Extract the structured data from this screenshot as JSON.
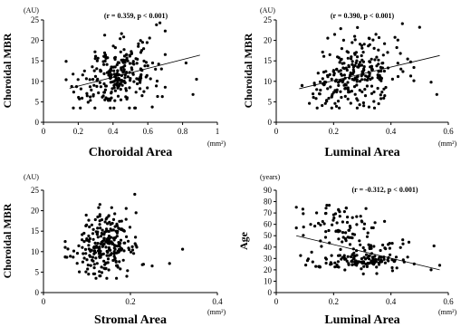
{
  "chart_data": [
    {
      "type": "scatter",
      "id": "choroidal-area",
      "xlabel": "Choroidal Area",
      "ylabel": "Choroidal MBR",
      "yunit": "(AU)",
      "xunit": "(mm²)",
      "stat": "(r = 0.359, p < 0.001)",
      "xlim": [
        0,
        1
      ],
      "ylim": [
        0,
        25
      ],
      "xticks": [
        "0",
        "0.2",
        "0.4",
        "0.6",
        "0.8",
        "1"
      ],
      "yticks": [
        "0",
        "5",
        "10",
        "15",
        "20",
        "25"
      ],
      "regression": {
        "x": [
          0.15,
          0.9
        ],
        "y": [
          8.3,
          16.4
        ]
      },
      "points": {
        "n": 260,
        "x_center": 0.42,
        "x_spread": 0.11,
        "x_min": 0.13,
        "x_max": 0.7,
        "y_center": 11.5,
        "y_spread": 3.8,
        "y_min": 3.5,
        "y_max": 24.5,
        "slope": 10.8,
        "intercept": 6.7,
        "extra": [
          [
            0.86,
            6.8
          ],
          [
            0.88,
            10.5
          ],
          [
            0.82,
            14.5
          ],
          [
            0.65,
            23.8
          ],
          [
            0.67,
            24.3
          ]
        ]
      }
    },
    {
      "type": "scatter",
      "id": "luminal-area-mbr",
      "xlabel": "Luminal Area",
      "ylabel": "Choroidal MBR",
      "yunit": "(AU)",
      "xunit": "(mm²)",
      "stat": "(r = 0.390, p < 0.001)",
      "xlim": [
        0,
        0.6
      ],
      "ylim": [
        0,
        25
      ],
      "xticks": [
        "0",
        "0.2",
        "0.4",
        "0.6"
      ],
      "yticks": [
        "0",
        "5",
        "10",
        "15",
        "20",
        "25"
      ],
      "regression": {
        "x": [
          0.08,
          0.57
        ],
        "y": [
          8.2,
          16.3
        ]
      },
      "points": {
        "n": 260,
        "x_center": 0.27,
        "x_spread": 0.075,
        "x_min": 0.09,
        "x_max": 0.48,
        "y_center": 11.5,
        "y_spread": 3.8,
        "y_min": 3.5,
        "y_max": 24.5,
        "slope": 16.5,
        "intercept": 7.0,
        "extra": [
          [
            0.54,
            9.8
          ],
          [
            0.56,
            6.8
          ],
          [
            0.5,
            23.2
          ],
          [
            0.44,
            24.1
          ]
        ]
      }
    },
    {
      "type": "scatter",
      "id": "stromal-area",
      "xlabel": "Stromal Area",
      "ylabel": "Choroidal MBR",
      "yunit": "(AU)",
      "xunit": "(mm²)",
      "stat": "",
      "xlim": [
        0,
        0.4
      ],
      "ylim": [
        0,
        25
      ],
      "xticks": [
        "0",
        "0.2",
        "0.4"
      ],
      "yticks": [
        "0",
        "5",
        "10",
        "15",
        "20",
        "25"
      ],
      "regression": null,
      "points": {
        "n": 260,
        "x_center": 0.14,
        "x_spread": 0.035,
        "x_min": 0.05,
        "x_max": 0.23,
        "y_center": 11.5,
        "y_spread": 3.8,
        "y_min": 3.5,
        "y_max": 24.5,
        "slope": 10.0,
        "intercept": 10.1,
        "extra": [
          [
            0.32,
            10.6
          ],
          [
            0.29,
            7.1
          ],
          [
            0.25,
            6.5
          ],
          [
            0.21,
            24.0
          ]
        ]
      }
    },
    {
      "type": "scatter",
      "id": "luminal-area-age",
      "xlabel": "Luminal Area",
      "ylabel": "Age",
      "yunit": "(years)",
      "xunit": "(mm²)",
      "stat": "(r = -0.312, p < 0.001)",
      "xlim": [
        0,
        0.6
      ],
      "ylim": [
        0,
        90
      ],
      "xticks": [
        "0",
        "0.2",
        "0.4",
        "0.6"
      ],
      "yticks": [
        "0",
        "10",
        "20",
        "30",
        "40",
        "50",
        "60",
        "70",
        "80",
        "90"
      ],
      "regression": {
        "x": [
          0.07,
          0.57
        ],
        "y": [
          50,
          20
        ]
      },
      "points": {
        "groups": [
          {
            "n": 120,
            "x_center": 0.29,
            "x_spread": 0.08,
            "y_center": 27,
            "y_spread": 3.5
          },
          {
            "n": 70,
            "x_center": 0.24,
            "x_spread": 0.07,
            "y_center": 60,
            "y_spread": 9
          },
          {
            "n": 40,
            "x_center": 0.3,
            "x_spread": 0.09,
            "y_center": 40,
            "y_spread": 6
          }
        ],
        "x_min": 0.07,
        "x_max": 0.55,
        "y_min": 12,
        "y_max": 82,
        "extra": [
          [
            0.07,
            75
          ],
          [
            0.55,
            41
          ],
          [
            0.57,
            24
          ],
          [
            0.54,
            20
          ],
          [
            0.12,
            60
          ]
        ]
      }
    }
  ]
}
